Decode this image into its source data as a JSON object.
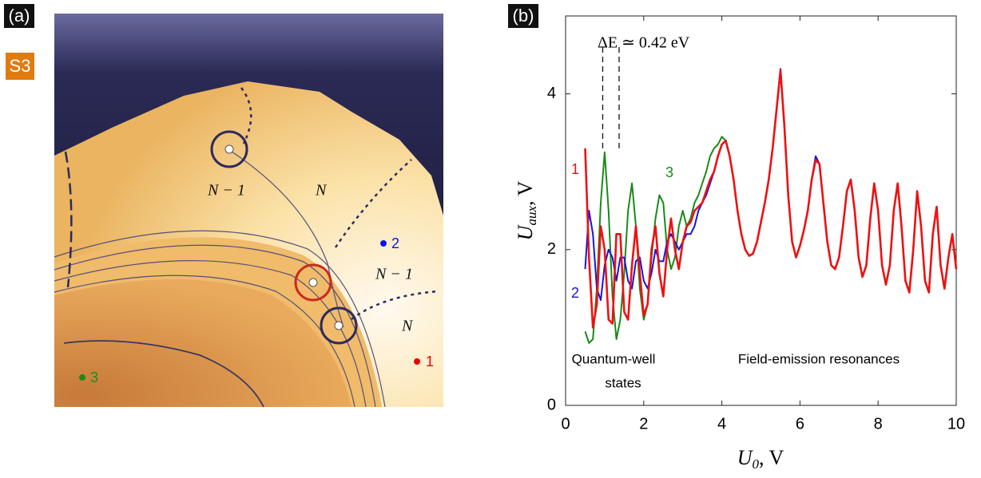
{
  "panel_a": {
    "label": "(a)",
    "badge": "S3",
    "regions": [
      "N − 1",
      "N",
      "N − 1",
      "N"
    ],
    "points": [
      "1",
      "2",
      "3"
    ]
  },
  "chart_data": {
    "type": "line",
    "panel_label": "(b)",
    "y_label": {
      "symbol": "U",
      "sub": "aux",
      "unit": ", V"
    },
    "x_label": {
      "symbol": "U",
      "sub": "0",
      "unit": ", V"
    },
    "annotations": [
      "ΔE ≃ 0.42 eV",
      "Quantum-well",
      "states",
      "Field-emission resonances"
    ],
    "dashed_lines_x": [
      0.95,
      1.37
    ],
    "xlim": [
      0,
      10
    ],
    "xticks": [
      0,
      2,
      4,
      6,
      8,
      10
    ],
    "ylim": [
      0,
      5
    ],
    "yticks": [
      0,
      2,
      4
    ],
    "x": [
      0.5,
      0.6,
      0.7,
      0.8,
      0.9,
      1.0,
      1.1,
      1.2,
      1.3,
      1.4,
      1.5,
      1.6,
      1.7,
      1.8,
      1.9,
      2.0,
      2.1,
      2.2,
      2.3,
      2.4,
      2.5,
      2.6,
      2.7,
      2.8,
      2.9,
      3.0,
      3.1,
      3.2,
      3.3,
      3.4,
      3.5,
      3.6,
      3.7,
      3.8,
      3.9,
      4.0,
      4.1,
      4.2,
      4.3,
      4.4,
      4.5,
      4.6,
      4.7,
      4.8,
      4.9,
      5.0,
      5.1,
      5.2,
      5.3,
      5.4,
      5.5,
      5.6,
      5.7,
      5.8,
      5.9,
      6.0,
      6.1,
      6.2,
      6.3,
      6.4,
      6.5,
      6.6,
      6.7,
      6.8,
      6.9,
      7.0,
      7.1,
      7.2,
      7.3,
      7.4,
      7.5,
      7.6,
      7.7,
      7.8,
      7.9,
      8.0,
      8.1,
      8.2,
      8.3,
      8.4,
      8.5,
      8.6,
      8.7,
      8.8,
      8.9,
      9.0,
      9.1,
      9.2,
      9.3,
      9.4,
      9.5,
      9.6,
      9.7,
      9.8,
      9.9,
      10.0
    ],
    "series": [
      {
        "name": "3",
        "color": "#1a8a1a",
        "values": [
          0.95,
          0.8,
          0.85,
          1.5,
          2.6,
          3.25,
          2.5,
          1.4,
          0.85,
          1.1,
          1.7,
          2.5,
          2.85,
          2.3,
          1.5,
          1.1,
          1.3,
          1.9,
          2.4,
          2.7,
          2.6,
          2.0,
          1.75,
          1.9,
          2.3,
          2.5,
          2.3,
          2.4,
          2.6,
          2.7,
          2.85,
          3.0,
          3.2,
          3.3,
          3.35,
          3.45,
          3.4,
          3.2,
          2.9,
          2.5,
          2.2,
          2.0,
          1.92,
          1.95,
          2.1,
          2.35,
          2.6,
          2.9,
          3.3,
          3.8,
          4.28,
          3.6,
          2.7,
          2.1,
          1.9,
          2.05,
          2.25,
          2.5,
          2.9,
          3.15,
          3.1,
          2.6,
          2.1,
          1.8,
          1.75,
          1.9,
          2.3,
          2.75,
          2.9,
          2.5,
          1.9,
          1.65,
          1.8,
          2.4,
          2.85,
          2.5,
          1.8,
          1.55,
          1.8,
          2.5,
          2.85,
          2.3,
          1.6,
          1.45,
          2.0,
          2.75,
          2.3,
          1.6,
          1.45,
          2.2,
          2.55,
          1.8,
          1.5,
          1.9,
          2.2,
          1.75
        ]
      },
      {
        "name": "2",
        "color": "#1515e0",
        "values": [
          1.75,
          2.5,
          2.2,
          1.5,
          1.35,
          1.8,
          2.0,
          1.9,
          1.6,
          1.9,
          1.9,
          1.6,
          1.5,
          1.85,
          1.9,
          1.6,
          1.5,
          1.7,
          2.0,
          1.85,
          1.85,
          2.1,
          2.2,
          2.1,
          2.0,
          2.1,
          2.2,
          2.2,
          2.3,
          2.5,
          2.6,
          2.7,
          2.85,
          3.0,
          3.2,
          3.35,
          3.4,
          3.2,
          2.9,
          2.5,
          2.2,
          2.0,
          1.92,
          1.95,
          2.1,
          2.35,
          2.6,
          2.9,
          3.3,
          3.8,
          4.32,
          3.6,
          2.7,
          2.1,
          1.9,
          2.05,
          2.25,
          2.5,
          2.9,
          3.2,
          3.1,
          2.6,
          2.1,
          1.8,
          1.75,
          1.9,
          2.3,
          2.75,
          2.9,
          2.5,
          1.9,
          1.65,
          1.8,
          2.4,
          2.85,
          2.5,
          1.8,
          1.55,
          1.8,
          2.5,
          2.85,
          2.3,
          1.6,
          1.45,
          2.0,
          2.75,
          2.3,
          1.6,
          1.45,
          2.2,
          2.55,
          1.8,
          1.5,
          1.9,
          2.2,
          1.75
        ]
      },
      {
        "name": "1",
        "color": "#ee1111",
        "values": [
          3.3,
          1.9,
          1.0,
          1.3,
          2.3,
          2.0,
          1.1,
          1.05,
          2.2,
          2.2,
          1.2,
          1.1,
          1.8,
          2.3,
          1.7,
          1.15,
          1.3,
          2.0,
          2.3,
          1.7,
          1.4,
          2.0,
          2.4,
          2.0,
          1.75,
          2.1,
          2.3,
          2.35,
          2.5,
          2.55,
          2.6,
          2.75,
          2.9,
          3.0,
          3.2,
          3.35,
          3.4,
          3.2,
          2.9,
          2.5,
          2.2,
          2.0,
          1.92,
          1.95,
          2.1,
          2.35,
          2.6,
          2.9,
          3.3,
          3.8,
          4.3,
          3.6,
          2.7,
          2.1,
          1.9,
          2.05,
          2.25,
          2.5,
          2.9,
          3.15,
          3.1,
          2.6,
          2.1,
          1.8,
          1.75,
          1.9,
          2.3,
          2.75,
          2.9,
          2.5,
          1.9,
          1.65,
          1.8,
          2.4,
          2.85,
          2.5,
          1.8,
          1.55,
          1.8,
          2.5,
          2.85,
          2.3,
          1.6,
          1.45,
          2.0,
          2.75,
          2.3,
          1.6,
          1.45,
          2.2,
          2.55,
          1.8,
          1.5,
          1.9,
          2.2,
          1.75
        ]
      }
    ]
  }
}
